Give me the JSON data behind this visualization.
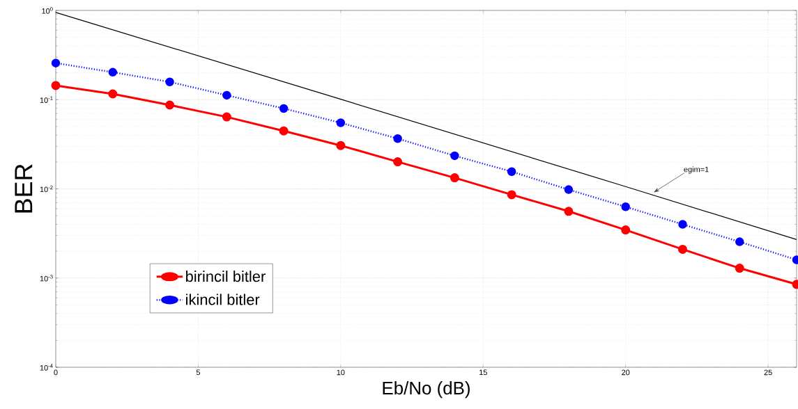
{
  "chart_data": {
    "type": "line",
    "xlabel": "Eb/No (dB)",
    "ylabel": "BER",
    "log": "y",
    "grid": true,
    "legend": "bottom left",
    "xlim": [
      0,
      26
    ],
    "xticks": [
      0,
      5,
      10,
      15,
      20,
      25
    ],
    "ylim": [
      0.0001,
      1
    ],
    "yticks": [
      {
        "value": 0.0001,
        "label": "10$^{-4}$"
      },
      {
        "value": 0.001,
        "label": "10$^{-3}$"
      },
      {
        "value": 0.01,
        "label": "10$^{-2}$"
      },
      {
        "value": 0.1,
        "label": "10$^{-1}$"
      },
      {
        "value": 1,
        "label": "10$^{0}$"
      }
    ],
    "x": [
      0,
      2,
      4,
      6,
      8,
      10,
      12,
      14,
      16,
      18,
      20,
      22,
      24,
      26
    ],
    "series": [
      {
        "name": "birincil bitler",
        "color": "#ff0000",
        "marker": "circle",
        "line_style": "solid",
        "values": [
          0.144,
          0.116,
          0.087,
          0.064,
          0.0446,
          0.0306,
          0.0201,
          0.0133,
          0.0086,
          0.0056,
          0.00346,
          0.0021,
          0.00129,
          0.00085
        ]
      },
      {
        "name": "ikincil bitler",
        "color": "#0000ff",
        "marker": "circle",
        "line_style": "dotted",
        "values": [
          0.257,
          0.203,
          0.158,
          0.112,
          0.0796,
          0.055,
          0.0366,
          0.0235,
          0.0156,
          0.0098,
          0.0063,
          0.004,
          0.00255,
          0.0016
        ]
      },
      {
        "color": "#000000",
        "marker": "none",
        "line_style": "solid",
        "x": [
          0,
          10,
          20,
          26
        ],
        "values": [
          0.95,
          0.101,
          0.0106,
          0.0027
        ]
      }
    ],
    "annotations": [
      {
        "text": "egim=1",
        "x": 20.98,
        "y": 0.0091
      }
    ]
  }
}
